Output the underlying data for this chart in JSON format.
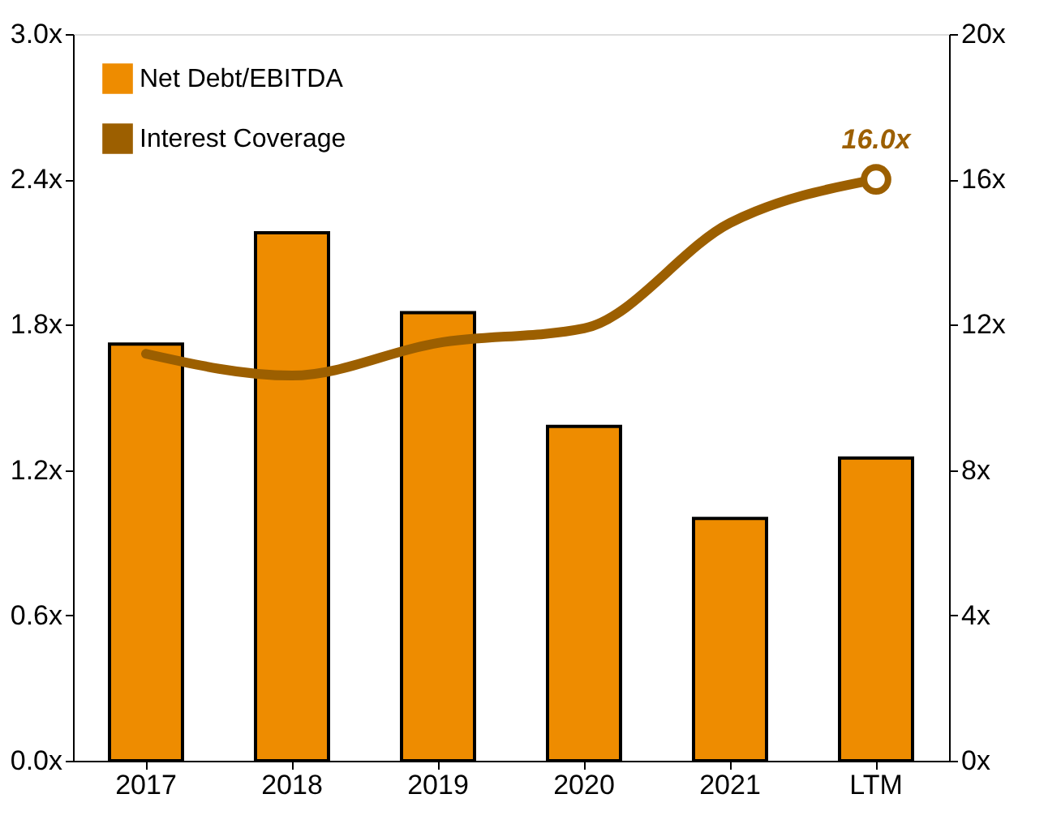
{
  "chart_data": {
    "type": "bar",
    "categories": [
      "2017",
      "2018",
      "2019",
      "2020",
      "2021",
      "LTM"
    ],
    "series": [
      {
        "name": "Net Debt/EBITDA",
        "color": "#ee8c00",
        "values": [
          1.72,
          2.18,
          1.85,
          1.38,
          1.0,
          1.25
        ]
      },
      {
        "name": "Interest Coverage",
        "type": "line",
        "axis": "y2",
        "color": "#9c5f00",
        "values": [
          11.2,
          10.6,
          11.5,
          11.9,
          14.8,
          16.0
        ],
        "value_labels": [
          null,
          null,
          null,
          null,
          null,
          "16.0x"
        ]
      }
    ],
    "ylim": [
      0,
      3.0
    ],
    "yticks": [
      {
        "value": 0,
        "label": "0.0x"
      },
      {
        "value": 0.6,
        "label": "0.6x"
      },
      {
        "value": 1.2,
        "label": "1.2x"
      },
      {
        "value": 1.8,
        "label": "1.8x"
      },
      {
        "value": 2.4,
        "label": "2.4x"
      },
      {
        "value": 3.0,
        "label": "3.0x"
      }
    ],
    "y2lim": [
      0,
      20
    ],
    "y2ticks": [
      {
        "value": 0,
        "label": "0x"
      },
      {
        "value": 4,
        "label": "4x"
      },
      {
        "value": 8,
        "label": "8x"
      },
      {
        "value": 12,
        "label": "12x"
      },
      {
        "value": 16,
        "label": "16x"
      },
      {
        "value": 20,
        "label": "20x"
      }
    ],
    "legend": "top left",
    "grid": false,
    "marker": "none",
    "line_style": "solid"
  }
}
